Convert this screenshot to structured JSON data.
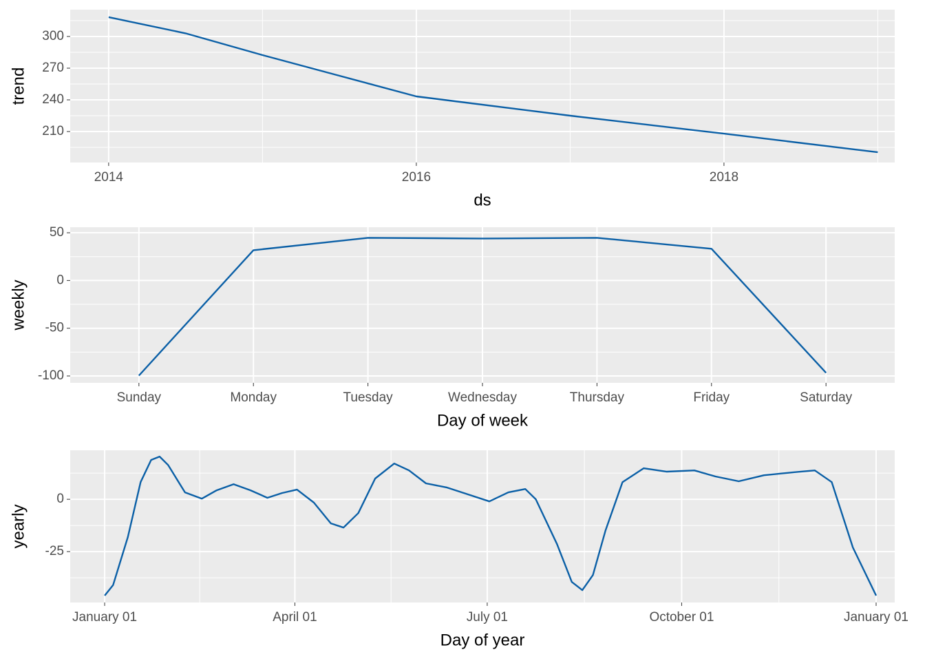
{
  "chart_data": [
    {
      "type": "line",
      "ylabel": "trend",
      "xlabel": "ds",
      "color": "#0a5fa6",
      "grid": true,
      "x": [
        2014,
        2014.5,
        2015,
        2015.5,
        2016,
        2016.25,
        2017,
        2018,
        2019
      ],
      "values": [
        318.3,
        303,
        282.4,
        262.8,
        243.3,
        238.7,
        225,
        208,
        190.4
      ],
      "xlim": [
        2013.75,
        2019.11
      ],
      "xticks": [
        2014,
        2016,
        2018
      ],
      "ylim": [
        180.7,
        325.4
      ],
      "yticks": [
        210,
        240,
        270,
        300
      ]
    },
    {
      "type": "line",
      "ylabel": "weekly",
      "xlabel": "Day of week",
      "color": "#0a5fa6",
      "grid": true,
      "categories": [
        "Sunday",
        "Monday",
        "Tuesday",
        "Wednesday",
        "Thursday",
        "Friday",
        "Saturday"
      ],
      "values": [
        -99.6,
        31.7,
        44.7,
        44,
        44.7,
        33.2,
        -96.7
      ],
      "ylim": [
        -107.2,
        55.8
      ],
      "yticks": [
        -100,
        -50,
        0,
        50
      ]
    },
    {
      "type": "line",
      "ylabel": "yearly",
      "xlabel": "Day of year",
      "color": "#0a5fa6",
      "grid": true,
      "x": [
        0,
        4,
        11,
        17,
        22,
        26,
        30,
        38,
        46,
        53,
        61,
        69,
        77,
        84,
        91,
        99,
        107,
        113,
        120,
        128,
        137,
        144,
        152,
        162,
        172,
        182,
        191,
        199,
        204,
        214,
        221,
        226,
        231,
        237,
        245,
        255,
        266,
        279,
        289,
        300,
        312,
        325,
        336,
        344,
        354,
        365
      ],
      "values": [
        -46,
        -41,
        -18,
        8.2,
        18.8,
        20.4,
        16.4,
        3.3,
        0.3,
        4.3,
        7.2,
        4.3,
        0.7,
        3,
        4.6,
        -1.6,
        -11.5,
        -13.5,
        -6.6,
        9.9,
        17.1,
        13.8,
        7.6,
        5.6,
        2.3,
        -1,
        3.3,
        4.9,
        0,
        -21.4,
        -39.5,
        -43.4,
        -36.2,
        -14.8,
        8.2,
        14.8,
        13.2,
        13.8,
        10.9,
        8.6,
        11.5,
        12.8,
        13.8,
        8.2,
        -23,
        -46
      ],
      "xlim": [
        -16.3,
        373.8
      ],
      "xticks": [
        {
          "value": 0,
          "label": "January 01"
        },
        {
          "value": 90,
          "label": "April 01"
        },
        {
          "value": 181,
          "label": "July 01"
        },
        {
          "value": 273,
          "label": "October 01"
        },
        {
          "value": 365,
          "label": "January 01"
        }
      ],
      "ylim": [
        -49.3,
        23.4
      ],
      "yticks": [
        -25,
        0
      ]
    }
  ]
}
